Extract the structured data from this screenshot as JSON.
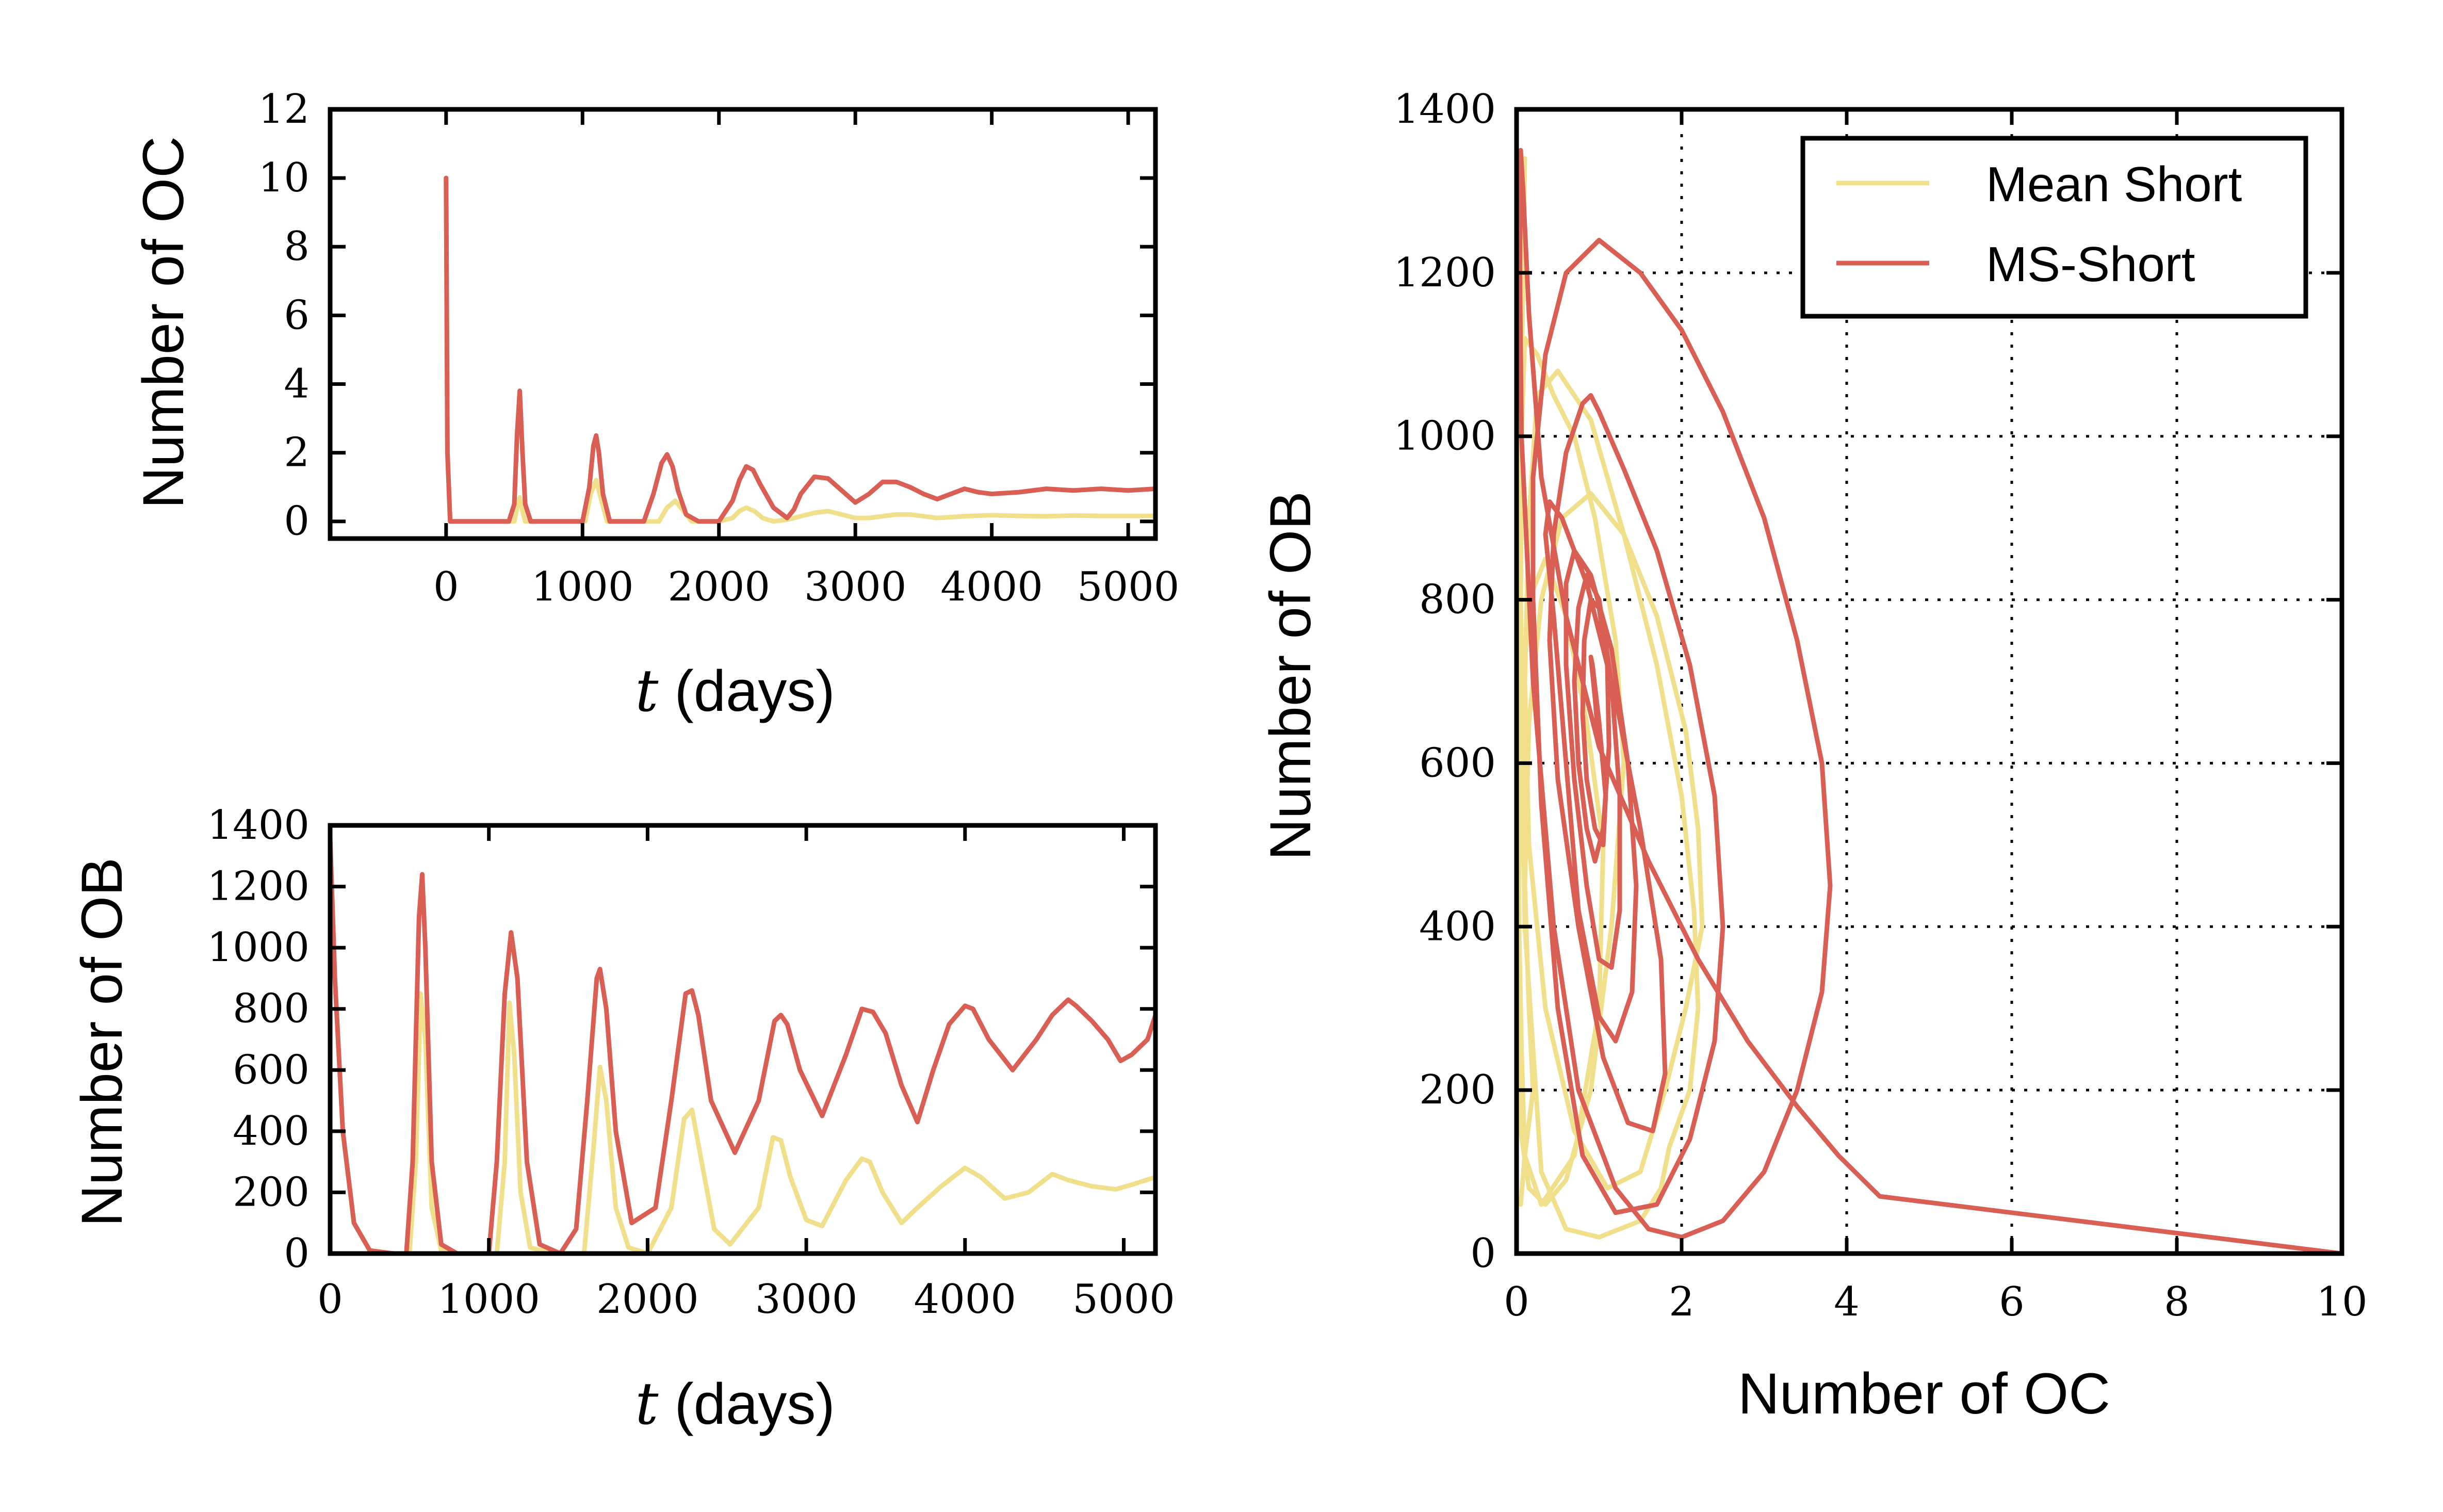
{
  "colors": {
    "mean_short": "#f0e08c",
    "ms_short": "#d95f55",
    "axis": "#000000",
    "grid": "#000000"
  },
  "chart_data": [
    {
      "id": "oc-time",
      "type": "line",
      "xlabel_var": "t",
      "xlabel_unit": " (days)",
      "ylabel": "Number of OC",
      "xlim": [
        -850,
        5200
      ],
      "ylim": [
        -0.5,
        12
      ],
      "xticks": [
        0,
        1000,
        2000,
        3000,
        4000,
        5000
      ],
      "yticks": [
        0,
        2,
        4,
        6,
        8,
        10,
        12
      ],
      "grid": false,
      "series": [
        {
          "name": "Mean Short",
          "color_key": "mean_short",
          "x": [
            0,
            10,
            30,
            500,
            520,
            540,
            560,
            580,
            1020,
            1060,
            1100,
            1140,
            1180,
            1560,
            1620,
            1680,
            1740,
            1800,
            2000,
            2100,
            2150,
            2200,
            2260,
            2320,
            2400,
            2500,
            2600,
            2700,
            2800,
            2900,
            3000,
            3100,
            3200,
            3300,
            3400,
            3500,
            3600,
            3800,
            4000,
            4200,
            4400,
            4600,
            4800,
            5000,
            5200
          ],
          "y": [
            10,
            2,
            0,
            0,
            0.4,
            0.7,
            0.3,
            0,
            0,
            0.8,
            1.2,
            0.6,
            0,
            0,
            0.4,
            0.6,
            0.3,
            0,
            0,
            0.1,
            0.3,
            0.4,
            0.3,
            0.1,
            0,
            0.05,
            0.15,
            0.25,
            0.3,
            0.2,
            0.1,
            0.1,
            0.15,
            0.2,
            0.2,
            0.15,
            0.1,
            0.15,
            0.18,
            0.16,
            0.15,
            0.17,
            0.16,
            0.16,
            0.16
          ]
        },
        {
          "name": "MS-Short",
          "color_key": "ms_short",
          "x": [
            0,
            10,
            30,
            460,
            500,
            520,
            540,
            560,
            580,
            620,
            1000,
            1050,
            1080,
            1100,
            1120,
            1150,
            1200,
            1450,
            1520,
            1580,
            1620,
            1660,
            1700,
            1760,
            1850,
            2000,
            2100,
            2150,
            2200,
            2250,
            2300,
            2400,
            2500,
            2550,
            2600,
            2700,
            2800,
            2900,
            3000,
            3100,
            3200,
            3300,
            3400,
            3500,
            3600,
            3700,
            3800,
            3900,
            4000,
            4200,
            4400,
            4600,
            4800,
            5000,
            5200
          ],
          "y": [
            10,
            2,
            0,
            0,
            0.5,
            2.5,
            3.8,
            2.0,
            0.5,
            0,
            0,
            1.0,
            2.2,
            2.5,
            2.0,
            0.8,
            0,
            0,
            0.8,
            1.7,
            1.95,
            1.6,
            0.9,
            0.2,
            0,
            0,
            0.6,
            1.2,
            1.6,
            1.5,
            1.1,
            0.4,
            0.1,
            0.35,
            0.8,
            1.3,
            1.25,
            0.9,
            0.55,
            0.8,
            1.15,
            1.15,
            1.0,
            0.8,
            0.65,
            0.8,
            0.95,
            0.85,
            0.8,
            0.85,
            0.95,
            0.9,
            0.95,
            0.9,
            0.95
          ]
        }
      ]
    },
    {
      "id": "ob-time",
      "type": "line",
      "xlabel_var": "t",
      "xlabel_unit": " (days)",
      "ylabel": "Number of OB",
      "xlim": [
        0,
        5200
      ],
      "ylim": [
        0,
        1400
      ],
      "xticks": [
        0,
        1000,
        2000,
        3000,
        4000,
        5000
      ],
      "yticks": [
        0,
        200,
        400,
        600,
        800,
        1000,
        1200,
        1400
      ],
      "grid": false,
      "series": [
        {
          "name": "Mean Short",
          "color_key": "mean_short",
          "x": [
            0,
            30,
            80,
            150,
            250,
            400,
            500,
            540,
            570,
            600,
            640,
            700,
            800,
            1050,
            1100,
            1130,
            1160,
            1200,
            1260,
            1400,
            1600,
            1660,
            1700,
            1740,
            1800,
            1880,
            2000,
            2150,
            2230,
            2280,
            2330,
            2420,
            2520,
            2700,
            2790,
            2840,
            2900,
            3000,
            3100,
            3250,
            3350,
            3400,
            3480,
            3600,
            3700,
            3850,
            4000,
            4100,
            4250,
            4400,
            4550,
            4650,
            4800,
            4950,
            5050,
            5200
          ],
          "y": [
            1340,
            900,
            400,
            100,
            10,
            0,
            0,
            300,
            850,
            700,
            150,
            10,
            0,
            0,
            300,
            820,
            650,
            200,
            20,
            0,
            0,
            350,
            610,
            500,
            150,
            20,
            0,
            150,
            440,
            470,
            330,
            80,
            30,
            150,
            380,
            370,
            250,
            110,
            90,
            240,
            310,
            300,
            200,
            100,
            150,
            220,
            280,
            250,
            180,
            200,
            260,
            240,
            220,
            210,
            225,
            250
          ]
        },
        {
          "name": "MS-Short",
          "color_key": "ms_short",
          "x": [
            0,
            30,
            80,
            150,
            250,
            400,
            480,
            520,
            560,
            580,
            600,
            640,
            700,
            800,
            1000,
            1050,
            1100,
            1140,
            1180,
            1240,
            1320,
            1450,
            1550,
            1620,
            1680,
            1700,
            1740,
            1800,
            1900,
            2050,
            2150,
            2240,
            2280,
            2320,
            2400,
            2550,
            2700,
            2800,
            2840,
            2880,
            2960,
            3100,
            3250,
            3350,
            3420,
            3500,
            3600,
            3700,
            3800,
            3900,
            4000,
            4050,
            4150,
            4300,
            4450,
            4550,
            4650,
            4700,
            4800,
            4900,
            4980,
            5050,
            5150,
            5200
          ],
          "y": [
            1360,
            900,
            400,
            100,
            10,
            0,
            0,
            300,
            1100,
            1240,
            1000,
            300,
            30,
            0,
            0,
            300,
            850,
            1050,
            900,
            300,
            30,
            0,
            80,
            500,
            900,
            930,
            800,
            400,
            100,
            150,
            500,
            850,
            860,
            780,
            500,
            330,
            500,
            760,
            780,
            750,
            600,
            450,
            650,
            800,
            790,
            720,
            550,
            430,
            600,
            750,
            810,
            800,
            700,
            600,
            700,
            780,
            830,
            810,
            760,
            700,
            630,
            650,
            700,
            780
          ]
        }
      ]
    },
    {
      "id": "phase",
      "type": "line",
      "xlabel": "Number of OC",
      "ylabel": "Number of OB",
      "xlim": [
        0,
        10
      ],
      "ylim": [
        0,
        1400
      ],
      "xticks": [
        0,
        2,
        4,
        6,
        8,
        10
      ],
      "yticks": [
        0,
        200,
        400,
        600,
        800,
        1000,
        1200,
        1400
      ],
      "grid": true,
      "legend": "top-right",
      "series": [
        {
          "name": "Mean Short",
          "color_key": "mean_short",
          "x": [
            0.1,
            0.08,
            0.05,
            0.03,
            0.02,
            0.03,
            0.06,
            0.1,
            0.3,
            0.7,
            1.0,
            1.05,
            0.85,
            0.6,
            0.35,
            0.15,
            0.05,
            0.03,
            0.02,
            0.05,
            0.15,
            0.35,
            0.6,
            0.9,
            1.15,
            1.3,
            1.2,
            0.95,
            0.7,
            0.45,
            0.25,
            0.1,
            0.06,
            0.05,
            0.1,
            0.3,
            0.6,
            1.0,
            1.5,
            1.75,
            1.85,
            2.1,
            2.2,
            2.15,
            2.0,
            1.7,
            1.3,
            0.9,
            0.5,
            0.25,
            0.15,
            0.1,
            0.15,
            0.35,
            0.7,
            1.1,
            1.5,
            1.8,
            2.05,
            2.25,
            2.2,
            2.05,
            1.7,
            1.3,
            0.9,
            0.55,
            0.3,
            0.15,
            0.1,
            0.15,
            0.2,
            0.1,
            0.05
          ],
          "y": [
            1340,
            1200,
            1000,
            800,
            600,
            400,
            250,
            120,
            60,
            120,
            300,
            500,
            650,
            780,
            850,
            800,
            650,
            450,
            280,
            150,
            80,
            60,
            90,
            200,
            400,
            600,
            750,
            900,
            1000,
            1050,
            1100,
            1120,
            1000,
            800,
            400,
            100,
            30,
            20,
            40,
            80,
            130,
            200,
            300,
            420,
            560,
            720,
            880,
            1020,
            1080,
            1050,
            900,
            700,
            500,
            300,
            150,
            80,
            100,
            200,
            300,
            400,
            520,
            640,
            780,
            880,
            930,
            900,
            800,
            650,
            450,
            300,
            200,
            120,
            60
          ]
        },
        {
          "name": "MS-Short",
          "color_key": "ms_short",
          "x": [
            10,
            4.4,
            3.9,
            3.4,
            2.8,
            2.2,
            1.6,
            1.0,
            0.6,
            0.3,
            0.15,
            0.08,
            0.05,
            0.04,
            0.06,
            0.2,
            0.45,
            0.75,
            1.2,
            1.6,
            2.0,
            2.5,
            3.0,
            3.4,
            3.7,
            3.8,
            3.7,
            3.4,
            3.0,
            2.5,
            2.0,
            1.5,
            1.0,
            0.6,
            0.35,
            0.2,
            0.2,
            0.3,
            0.5,
            0.8,
            1.2,
            1.7,
            2.1,
            2.4,
            2.5,
            2.4,
            2.1,
            1.7,
            1.3,
            1.0,
            0.9,
            0.8,
            0.6,
            0.45,
            0.4,
            0.5,
            0.75,
            1.05,
            1.35,
            1.65,
            1.8,
            1.75,
            1.5,
            1.2,
            0.85,
            0.55,
            0.4,
            0.35,
            0.45,
            0.6,
            0.75,
            1.0,
            1.2,
            1.4,
            1.45,
            1.35,
            1.15,
            0.9,
            0.7,
            0.6,
            0.6,
            0.7,
            0.85,
            1.0,
            1.15,
            1.25,
            1.25,
            1.15,
            1.0,
            0.85,
            0.75,
            0.7,
            0.75,
            0.85,
            0.95,
            1.05,
            1.12,
            1.1,
            1.0,
            0.9,
            0.82,
            0.8,
            0.85,
            0.95,
            1.05,
            1.08,
            1.0,
            0.92,
            0.9,
            0.95,
            1.0
          ],
          "y": [
            0,
            70,
            120,
            180,
            260,
            360,
            480,
            620,
            780,
            950,
            1150,
            1300,
            1350,
            1200,
            1000,
            700,
            400,
            200,
            80,
            30,
            20,
            40,
            100,
            200,
            320,
            450,
            600,
            750,
            900,
            1030,
            1130,
            1200,
            1240,
            1200,
            1100,
            950,
            800,
            550,
            300,
            120,
            50,
            60,
            140,
            260,
            400,
            560,
            720,
            860,
            960,
            1030,
            1050,
            1040,
            980,
            880,
            750,
            580,
            400,
            240,
            160,
            150,
            220,
            360,
            520,
            680,
            820,
            900,
            920,
            880,
            780,
            600,
            420,
            290,
            260,
            320,
            450,
            600,
            740,
            830,
            860,
            820,
            720,
            580,
            450,
            360,
            350,
            420,
            560,
            700,
            800,
            830,
            790,
            700,
            600,
            520,
            480,
            520,
            620,
            720,
            790,
            800,
            750,
            660,
            580,
            520,
            500,
            560,
            650,
            720,
            730,
            680,
            620
          ]
        }
      ]
    }
  ]
}
